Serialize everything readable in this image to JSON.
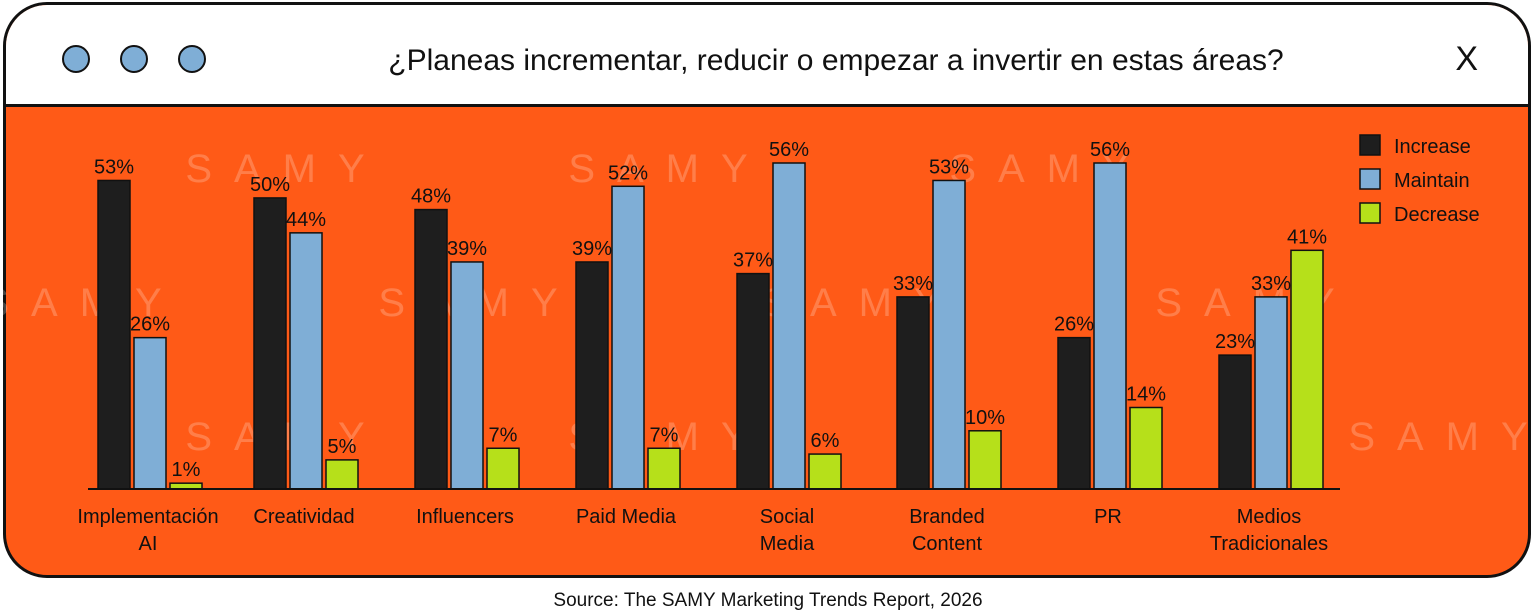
{
  "window": {
    "title": "¿Planeas incrementar, reducir o empezar a invertir en estas áreas?",
    "close_glyph": "X",
    "dot_color": "#7faed6",
    "background_color": "#ff5a17"
  },
  "watermark": {
    "text": "SAMY"
  },
  "source": "Source: The SAMY Marketing Trends Report, 2026",
  "chart_data": {
    "type": "bar",
    "categories": [
      [
        "Implementación",
        "AI"
      ],
      [
        "Creatividad"
      ],
      [
        "Influencers"
      ],
      [
        "Paid Media"
      ],
      [
        "Social",
        "Media"
      ],
      [
        "Branded",
        "Content"
      ],
      [
        "PR"
      ],
      [
        "Medios",
        "Tradicionales"
      ]
    ],
    "series": [
      {
        "name": "Increase",
        "color": "#1e1e1e",
        "values": [
          53,
          50,
          48,
          39,
          37,
          33,
          26,
          23
        ]
      },
      {
        "name": "Maintain",
        "color": "#7faed6",
        "values": [
          26,
          44,
          39,
          52,
          56,
          53,
          56,
          33
        ]
      },
      {
        "name": "Decrease",
        "color": "#b6e01a",
        "values": [
          1,
          5,
          7,
          7,
          6,
          10,
          14,
          41
        ]
      }
    ],
    "value_suffix": "%",
    "ylim": [
      0,
      56
    ],
    "grid": false,
    "legend_position": "top-right"
  }
}
